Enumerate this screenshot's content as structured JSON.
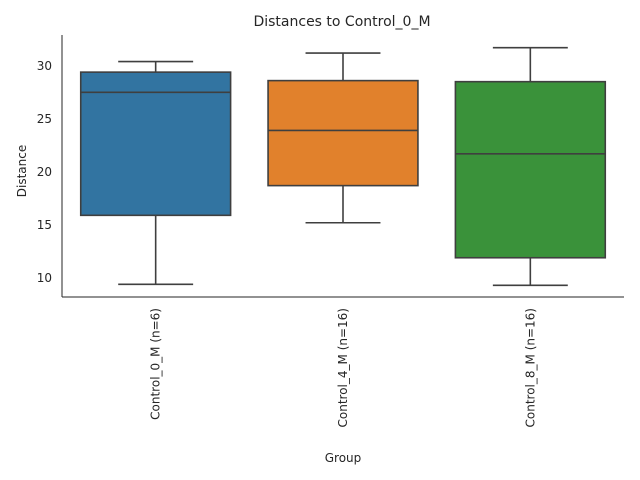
{
  "chart_data": {
    "type": "box",
    "title": "Distances to Control_0_M",
    "xlabel": "Group",
    "ylabel": "Distance",
    "ylim": [
      8.2,
      32.9
    ],
    "yticks": [
      10,
      15,
      20,
      25,
      30
    ],
    "grid": false,
    "categories": [
      "Control_0_M (n=6)",
      "Control_4_M (n=16)",
      "Control_8_M (n=16)"
    ],
    "boxes": [
      {
        "whisker_low": 9.4,
        "q1": 15.9,
        "median": 27.5,
        "q3": 29.4,
        "whisker_high": 30.4,
        "color": "#3274a1"
      },
      {
        "whisker_low": 15.2,
        "q1": 18.7,
        "median": 23.9,
        "q3": 28.6,
        "whisker_high": 31.2,
        "color": "#e1812c"
      },
      {
        "whisker_low": 9.3,
        "q1": 11.9,
        "median": 21.7,
        "q3": 28.5,
        "whisker_high": 31.7,
        "color": "#3a923a"
      }
    ]
  }
}
